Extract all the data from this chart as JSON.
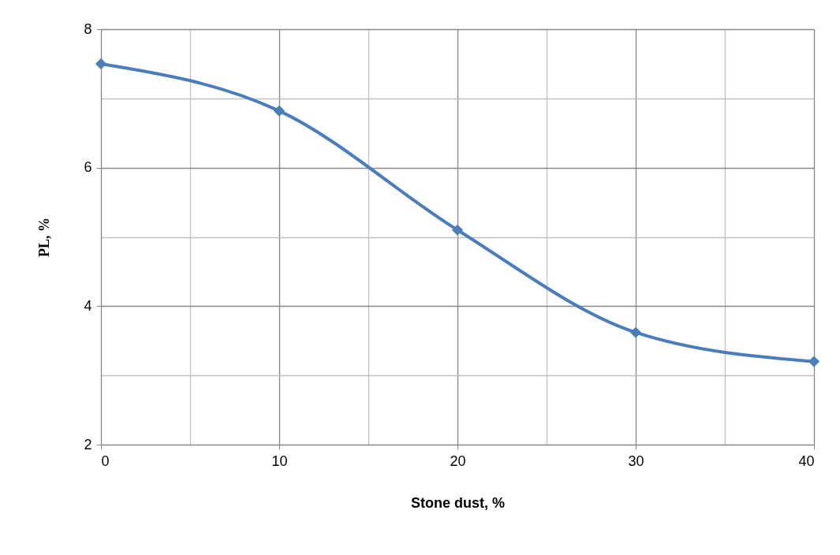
{
  "chart_data": {
    "type": "line",
    "xlabel": "Stone dust, %",
    "ylabel": "PL, %",
    "x": [
      0,
      10,
      20,
      30,
      40
    ],
    "series": [
      {
        "color": "#4a7ebb",
        "values": [
          7.5,
          6.82,
          5.1,
          3.62,
          3.2
        ]
      }
    ],
    "xlim": [
      0,
      40
    ],
    "xticks": [
      0,
      {
        "value": 5,
        "label": null
      },
      10,
      {
        "value": 15,
        "label": null
      },
      20,
      {
        "value": 25,
        "label": null
      },
      30,
      {
        "value": 35,
        "label": null
      },
      40
    ],
    "ylim": [
      2,
      8
    ],
    "yticks": [
      2,
      {
        "value": 3,
        "label": null
      },
      4,
      {
        "value": 5,
        "label": null
      },
      6,
      {
        "value": 7,
        "label": null
      },
      8
    ],
    "grid": true,
    "marker": "diamond",
    "line_style": "solid"
  }
}
